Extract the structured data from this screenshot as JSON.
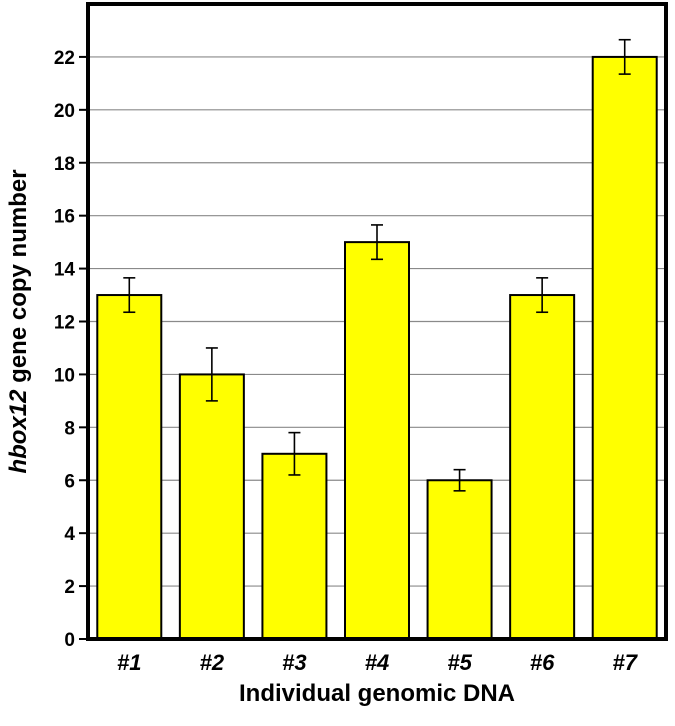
{
  "chart_data": {
    "type": "bar",
    "categories": [
      "#1",
      "#2",
      "#3",
      "#4",
      "#5",
      "#6",
      "#7"
    ],
    "values": [
      13,
      10,
      7,
      15,
      6,
      13,
      22
    ],
    "errors": [
      0.65,
      1.0,
      0.8,
      0.65,
      0.4,
      0.65,
      0.65
    ],
    "xlabel": "Individual genomic DNA",
    "ylabel_italic": "hbox12",
    "ylabel_rest": " gene copy number",
    "ylim": [
      0,
      24
    ],
    "yticks": [
      0,
      2,
      4,
      6,
      8,
      10,
      12,
      14,
      16,
      18,
      20,
      22
    ],
    "grid": true,
    "bar_color": "#ffff00"
  }
}
